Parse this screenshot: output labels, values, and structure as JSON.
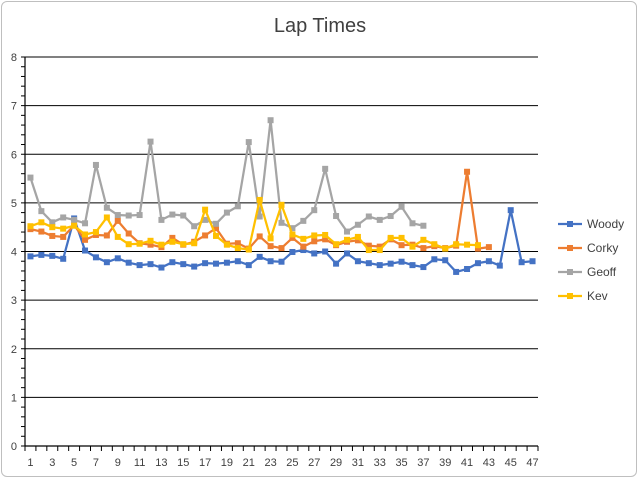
{
  "chart_data": {
    "type": "line",
    "title": "Lap Times",
    "xlabel": "",
    "ylabel": "",
    "x": [
      1,
      2,
      3,
      4,
      5,
      6,
      7,
      8,
      9,
      10,
      11,
      12,
      13,
      14,
      15,
      16,
      17,
      18,
      19,
      20,
      21,
      22,
      23,
      24,
      25,
      26,
      27,
      28,
      29,
      30,
      31,
      32,
      33,
      34,
      35,
      36,
      37,
      38,
      39,
      40,
      41,
      42,
      43,
      44,
      45,
      46,
      47
    ],
    "x_tick_labels": [
      "1",
      "3",
      "5",
      "7",
      "9",
      "11",
      "13",
      "15",
      "17",
      "19",
      "21",
      "23",
      "25",
      "27",
      "29",
      "31",
      "33",
      "35",
      "37",
      "39",
      "41",
      "43",
      "45",
      "47"
    ],
    "ylim": [
      0,
      8
    ],
    "y_ticks": [
      0,
      1,
      2,
      3,
      4,
      5,
      6,
      7,
      8
    ],
    "grid": true,
    "legend_position": "right",
    "series": [
      {
        "name": "Woody",
        "color": "#4472C4",
        "marker": "square",
        "values": [
          3.9,
          3.93,
          3.91,
          3.85,
          4.68,
          4.02,
          3.88,
          3.78,
          3.86,
          3.77,
          3.72,
          3.74,
          3.67,
          3.78,
          3.74,
          3.69,
          3.76,
          3.75,
          3.77,
          3.8,
          3.72,
          3.89,
          3.8,
          3.79,
          3.99,
          4.03,
          3.96,
          4.0,
          3.75,
          3.96,
          3.8,
          3.76,
          3.72,
          3.75,
          3.79,
          3.72,
          3.68,
          3.84,
          3.82,
          3.58,
          3.64,
          3.76,
          3.8,
          3.71,
          4.85,
          3.78,
          3.8
        ]
      },
      {
        "name": "Corky",
        "color": "#ED7D31",
        "marker": "square",
        "values": [
          4.46,
          4.41,
          4.32,
          4.3,
          4.54,
          4.24,
          4.34,
          4.33,
          4.63,
          4.37,
          4.17,
          4.14,
          4.09,
          4.28,
          4.14,
          4.2,
          4.33,
          4.48,
          4.16,
          4.17,
          4.06,
          4.31,
          4.11,
          4.07,
          4.28,
          4.1,
          4.21,
          4.25,
          4.13,
          4.2,
          4.23,
          4.12,
          4.1,
          4.25,
          4.13,
          4.14,
          4.07,
          4.11,
          4.07,
          4.12,
          5.64,
          4.06,
          4.09,
          null,
          null,
          null,
          null
        ]
      },
      {
        "name": "Geoff",
        "color": "#A5A5A5",
        "marker": "square",
        "values": [
          5.52,
          4.83,
          4.6,
          4.7,
          4.65,
          4.58,
          5.78,
          4.9,
          4.75,
          4.74,
          4.75,
          6.26,
          4.65,
          4.76,
          4.74,
          4.52,
          4.65,
          4.57,
          4.8,
          4.93,
          6.25,
          4.72,
          6.7,
          4.59,
          4.48,
          4.63,
          4.85,
          5.7,
          4.73,
          4.41,
          4.55,
          4.72,
          4.65,
          4.73,
          4.92,
          4.58,
          4.53,
          null,
          null,
          null,
          null,
          null,
          null,
          null,
          null,
          null,
          null
        ]
      },
      {
        "name": "Kev",
        "color": "#FFC000",
        "marker": "square",
        "values": [
          4.52,
          4.6,
          4.5,
          4.47,
          4.53,
          4.35,
          4.4,
          4.7,
          4.3,
          4.15,
          4.16,
          4.22,
          4.14,
          4.2,
          4.15,
          4.17,
          4.86,
          4.32,
          4.14,
          4.07,
          4.04,
          5.06,
          4.27,
          4.96,
          4.35,
          4.26,
          4.33,
          4.34,
          4.15,
          4.24,
          4.3,
          4.03,
          4.03,
          4.28,
          4.28,
          4.1,
          4.24,
          4.15,
          4.06,
          4.15,
          4.14,
          4.13,
          null,
          null,
          null,
          null,
          null
        ]
      }
    ]
  }
}
